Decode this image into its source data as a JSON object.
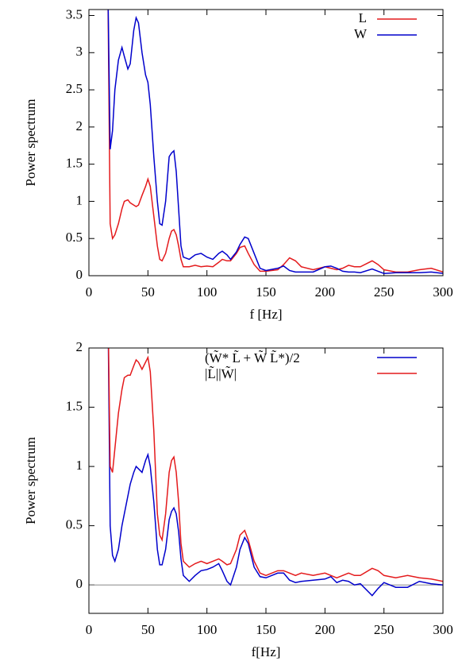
{
  "chart_data": [
    {
      "type": "line",
      "xlabel": "f [Hz]",
      "ylabel": "Power spectrum",
      "x": [
        16,
        18,
        20,
        22,
        25,
        28,
        30,
        33,
        35,
        38,
        40,
        42,
        45,
        48,
        50,
        52,
        55,
        58,
        60,
        62,
        65,
        68,
        70,
        72,
        74,
        76,
        78,
        80,
        85,
        90,
        95,
        100,
        105,
        110,
        113,
        117,
        120,
        125,
        128,
        132,
        135,
        140,
        145,
        150,
        160,
        165,
        170,
        175,
        180,
        190,
        200,
        205,
        210,
        215,
        220,
        225,
        230,
        240,
        245,
        250,
        260,
        270,
        280,
        290,
        300
      ],
      "series": [
        {
          "name": "L",
          "color": "#e41a1c",
          "values": [
            4.0,
            0.7,
            0.5,
            0.55,
            0.7,
            0.9,
            1.0,
            1.02,
            0.98,
            0.95,
            0.93,
            0.95,
            1.08,
            1.2,
            1.3,
            1.2,
            0.8,
            0.4,
            0.22,
            0.2,
            0.3,
            0.5,
            0.6,
            0.62,
            0.55,
            0.4,
            0.22,
            0.12,
            0.12,
            0.14,
            0.12,
            0.13,
            0.12,
            0.18,
            0.22,
            0.2,
            0.2,
            0.3,
            0.38,
            0.4,
            0.3,
            0.15,
            0.06,
            0.06,
            0.08,
            0.15,
            0.24,
            0.2,
            0.12,
            0.08,
            0.12,
            0.1,
            0.08,
            0.1,
            0.14,
            0.12,
            0.12,
            0.2,
            0.15,
            0.08,
            0.05,
            0.05,
            0.08,
            0.1,
            0.05
          ]
        },
        {
          "name": "W",
          "color": "#0000cc",
          "values": [
            4.0,
            1.7,
            1.95,
            2.5,
            2.9,
            3.07,
            2.95,
            2.78,
            2.85,
            3.3,
            3.47,
            3.4,
            3.0,
            2.7,
            2.6,
            2.3,
            1.6,
            1.0,
            0.7,
            0.68,
            1.0,
            1.6,
            1.65,
            1.68,
            1.4,
            0.9,
            0.4,
            0.25,
            0.22,
            0.28,
            0.3,
            0.25,
            0.22,
            0.3,
            0.33,
            0.28,
            0.22,
            0.32,
            0.42,
            0.52,
            0.5,
            0.3,
            0.1,
            0.07,
            0.1,
            0.13,
            0.07,
            0.05,
            0.05,
            0.05,
            0.12,
            0.13,
            0.1,
            0.06,
            0.05,
            0.05,
            0.04,
            0.09,
            0.06,
            0.03,
            0.04,
            0.04,
            0.04,
            0.05,
            0.03
          ]
        }
      ],
      "xlim": [
        0,
        300
      ],
      "xticks": [
        0,
        50,
        100,
        150,
        200,
        250,
        300
      ],
      "ylim": [
        0,
        3.58
      ],
      "yticks": [
        0,
        0.5,
        1,
        1.5,
        2,
        2.5,
        3,
        3.5
      ],
      "legend": "upper right"
    },
    {
      "type": "line",
      "xlabel": "f[Hz]",
      "ylabel": "Power spectrum",
      "x": [
        16,
        18,
        20,
        22,
        25,
        28,
        30,
        33,
        35,
        38,
        40,
        42,
        45,
        48,
        50,
        52,
        55,
        58,
        60,
        62,
        65,
        68,
        70,
        72,
        74,
        76,
        78,
        80,
        85,
        90,
        95,
        100,
        105,
        110,
        113,
        117,
        120,
        125,
        128,
        132,
        135,
        140,
        145,
        150,
        160,
        165,
        170,
        175,
        180,
        190,
        200,
        205,
        210,
        215,
        220,
        225,
        230,
        240,
        245,
        250,
        260,
        270,
        280,
        290,
        300
      ],
      "series": [
        {
          "name": "(W̃* L̃ + W̃ L̃*)/2",
          "color": "#0000cc",
          "values": [
            2.5,
            0.5,
            0.25,
            0.2,
            0.3,
            0.5,
            0.6,
            0.75,
            0.85,
            0.95,
            1.0,
            0.98,
            0.95,
            1.05,
            1.1,
            1.0,
            0.7,
            0.3,
            0.17,
            0.17,
            0.3,
            0.55,
            0.62,
            0.65,
            0.6,
            0.45,
            0.22,
            0.08,
            0.03,
            0.08,
            0.12,
            0.13,
            0.15,
            0.18,
            0.12,
            0.03,
            0.0,
            0.15,
            0.3,
            0.4,
            0.35,
            0.15,
            0.07,
            0.06,
            0.1,
            0.1,
            0.04,
            0.02,
            0.03,
            0.04,
            0.05,
            0.07,
            0.02,
            0.04,
            0.03,
            0.0,
            0.01,
            -0.09,
            -0.03,
            0.02,
            -0.02,
            -0.02,
            0.03,
            0.01,
            0.0
          ]
        },
        {
          "name": "|L̃||W̃|",
          "color": "#e41a1c",
          "values": [
            2.5,
            1.0,
            0.95,
            1.15,
            1.45,
            1.65,
            1.75,
            1.77,
            1.77,
            1.85,
            1.9,
            1.88,
            1.82,
            1.88,
            1.92,
            1.8,
            1.3,
            0.6,
            0.42,
            0.38,
            0.6,
            0.95,
            1.05,
            1.08,
            0.95,
            0.7,
            0.35,
            0.2,
            0.15,
            0.18,
            0.2,
            0.18,
            0.2,
            0.22,
            0.2,
            0.17,
            0.18,
            0.3,
            0.42,
            0.46,
            0.38,
            0.2,
            0.1,
            0.08,
            0.12,
            0.12,
            0.1,
            0.08,
            0.1,
            0.08,
            0.1,
            0.08,
            0.06,
            0.08,
            0.1,
            0.08,
            0.08,
            0.14,
            0.12,
            0.08,
            0.06,
            0.08,
            0.06,
            0.05,
            0.03
          ]
        }
      ],
      "xlim": [
        0,
        300
      ],
      "xticks": [
        0,
        50,
        100,
        150,
        200,
        250,
        300
      ],
      "ylim": [
        -0.24,
        2
      ],
      "yticks": [
        0,
        0.5,
        1,
        1.5,
        2
      ],
      "zero_line": true,
      "legend": "upper right"
    }
  ]
}
